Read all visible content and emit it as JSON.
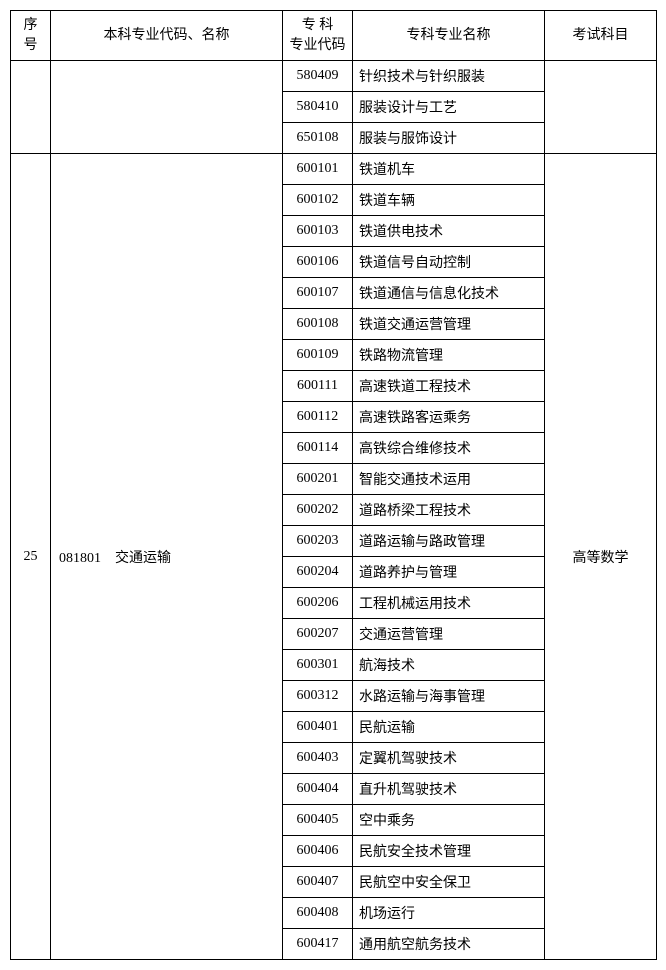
{
  "headers": {
    "seq": "序号",
    "major": "本科专业代码、名称",
    "spec_code": "专 科\n专业代码",
    "spec_name": "专科专业名称",
    "exam": "考试科目"
  },
  "group1": {
    "rows": [
      {
        "code": "580409",
        "name": "针织技术与针织服装"
      },
      {
        "code": "580410",
        "name": "服装设计与工艺"
      },
      {
        "code": "650108",
        "name": "服装与服饰设计"
      }
    ]
  },
  "group2": {
    "seq": "25",
    "major_code": "081801",
    "major_name": "交通运输",
    "exam": "高等数学",
    "rows": [
      {
        "code": "600101",
        "name": "铁道机车"
      },
      {
        "code": "600102",
        "name": "铁道车辆"
      },
      {
        "code": "600103",
        "name": "铁道供电技术"
      },
      {
        "code": "600106",
        "name": "铁道信号自动控制"
      },
      {
        "code": "600107",
        "name": "铁道通信与信息化技术"
      },
      {
        "code": "600108",
        "name": "铁道交通运营管理"
      },
      {
        "code": "600109",
        "name": "铁路物流管理"
      },
      {
        "code": "600111",
        "name": "高速铁道工程技术"
      },
      {
        "code": "600112",
        "name": "高速铁路客运乘务"
      },
      {
        "code": "600114",
        "name": "高铁综合维修技术"
      },
      {
        "code": "600201",
        "name": "智能交通技术运用"
      },
      {
        "code": "600202",
        "name": "道路桥梁工程技术"
      },
      {
        "code": "600203",
        "name": "道路运输与路政管理"
      },
      {
        "code": "600204",
        "name": "道路养护与管理"
      },
      {
        "code": "600206",
        "name": "工程机械运用技术"
      },
      {
        "code": "600207",
        "name": "交通运营管理"
      },
      {
        "code": "600301",
        "name": "航海技术"
      },
      {
        "code": "600312",
        "name": "水路运输与海事管理"
      },
      {
        "code": "600401",
        "name": "民航运输"
      },
      {
        "code": "600403",
        "name": "定翼机驾驶技术"
      },
      {
        "code": "600404",
        "name": "直升机驾驶技术"
      },
      {
        "code": "600405",
        "name": "空中乘务"
      },
      {
        "code": "600406",
        "name": "民航安全技术管理"
      },
      {
        "code": "600407",
        "name": "民航空中安全保卫"
      },
      {
        "code": "600408",
        "name": "机场运行"
      },
      {
        "code": "600417",
        "name": "通用航空航务技术"
      }
    ]
  }
}
